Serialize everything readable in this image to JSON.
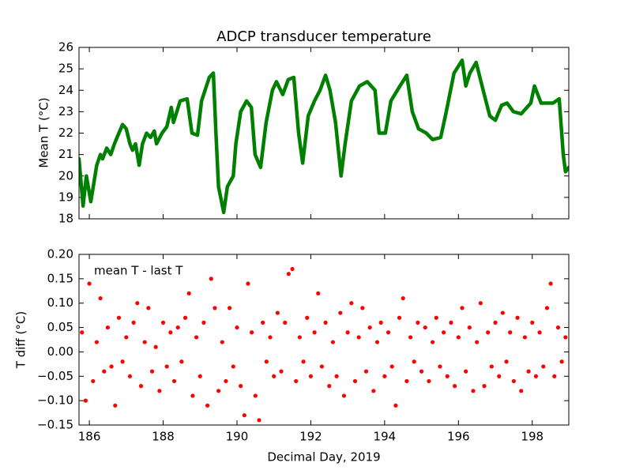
{
  "chart_data": [
    {
      "type": "line",
      "title": "ADCP transducer temperature",
      "ylabel": "Mean T (°C)",
      "x": [
        185.72,
        185.83,
        185.92,
        186.04,
        186.2,
        186.3,
        186.36,
        186.47,
        186.58,
        186.68,
        186.8,
        186.9,
        187.0,
        187.1,
        187.17,
        187.25,
        187.35,
        187.44,
        187.55,
        187.66,
        187.76,
        187.82,
        187.97,
        188.1,
        188.22,
        188.28,
        188.46,
        188.65,
        188.78,
        188.93,
        189.04,
        189.25,
        189.36,
        189.43,
        189.5,
        189.64,
        189.74,
        189.9,
        189.97,
        190.1,
        190.26,
        190.39,
        190.49,
        190.64,
        190.79,
        190.96,
        191.07,
        191.24,
        191.39,
        191.54,
        191.67,
        191.78,
        191.93,
        192.1,
        192.25,
        192.4,
        192.52,
        192.67,
        192.82,
        192.93,
        193.1,
        193.32,
        193.53,
        193.74,
        193.85,
        194.02,
        194.17,
        194.38,
        194.6,
        194.75,
        194.92,
        195.13,
        195.3,
        195.52,
        195.67,
        195.88,
        196.1,
        196.2,
        196.31,
        196.48,
        196.67,
        196.85,
        197.0,
        197.17,
        197.32,
        197.49,
        197.7,
        197.96,
        198.06,
        198.24,
        198.56,
        198.73,
        198.84,
        198.9,
        198.99
      ],
      "series": [
        {
          "name": "Mean T",
          "color": "#008000",
          "values": [
            20.8,
            18.6,
            20.0,
            18.8,
            20.5,
            21.0,
            20.8,
            21.3,
            21.0,
            21.5,
            22.0,
            22.4,
            22.2,
            21.5,
            21.2,
            21.5,
            20.5,
            21.5,
            22.0,
            21.8,
            22.1,
            21.5,
            22.0,
            22.3,
            23.2,
            22.5,
            23.5,
            23.6,
            22.0,
            21.9,
            23.5,
            24.6,
            24.8,
            22.0,
            19.5,
            18.3,
            19.5,
            20.0,
            21.5,
            23.0,
            23.5,
            23.2,
            21.0,
            20.4,
            22.5,
            24.0,
            24.4,
            23.8,
            24.5,
            24.6,
            22.0,
            20.6,
            22.8,
            23.5,
            24.0,
            24.7,
            24.0,
            22.5,
            20.0,
            21.5,
            23.5,
            24.2,
            24.4,
            24.0,
            22.0,
            22.0,
            23.5,
            24.1,
            24.7,
            23.0,
            22.2,
            22.0,
            21.7,
            21.8,
            23.0,
            24.8,
            25.4,
            24.2,
            24.8,
            25.3,
            24.0,
            22.8,
            22.6,
            23.3,
            23.4,
            23.0,
            22.9,
            23.4,
            24.2,
            23.4,
            23.4,
            23.6,
            21.0,
            20.2,
            20.4
          ]
        }
      ],
      "ylim": [
        18,
        26
      ],
      "yticks": [
        18,
        19,
        20,
        21,
        22,
        23,
        24,
        25,
        26
      ]
    },
    {
      "type": "scatter",
      "xlabel": "Decimal Day, 2019",
      "ylabel": "T diff (°C)",
      "annotation": "mean T - last T",
      "x": [
        185.8,
        185.9,
        186.0,
        186.1,
        186.2,
        186.3,
        186.4,
        186.5,
        186.6,
        186.7,
        186.8,
        186.9,
        187.0,
        187.1,
        187.2,
        187.3,
        187.4,
        187.5,
        187.6,
        187.7,
        187.8,
        187.9,
        188.0,
        188.1,
        188.2,
        188.3,
        188.4,
        188.5,
        188.6,
        188.7,
        188.8,
        188.9,
        189.0,
        189.1,
        189.2,
        189.3,
        189.4,
        189.5,
        189.6,
        189.7,
        189.8,
        189.9,
        190.0,
        190.1,
        190.2,
        190.3,
        190.4,
        190.5,
        190.6,
        190.7,
        190.8,
        190.9,
        191.0,
        191.1,
        191.2,
        191.3,
        191.4,
        191.5,
        191.6,
        191.7,
        191.8,
        191.9,
        192.0,
        192.1,
        192.2,
        192.3,
        192.4,
        192.5,
        192.6,
        192.7,
        192.8,
        192.9,
        193.0,
        193.1,
        193.2,
        193.3,
        193.4,
        193.5,
        193.6,
        193.7,
        193.8,
        193.9,
        194.0,
        194.1,
        194.2,
        194.3,
        194.4,
        194.5,
        194.6,
        194.7,
        194.8,
        194.9,
        195.0,
        195.1,
        195.2,
        195.3,
        195.4,
        195.5,
        195.6,
        195.7,
        195.8,
        195.9,
        196.0,
        196.1,
        196.2,
        196.3,
        196.4,
        196.5,
        196.6,
        196.7,
        196.8,
        196.9,
        197.0,
        197.1,
        197.2,
        197.3,
        197.4,
        197.5,
        197.6,
        197.7,
        197.8,
        197.9,
        198.0,
        198.1,
        198.2,
        198.3,
        198.4,
        198.5,
        198.6,
        198.7,
        198.8,
        198.9
      ],
      "series": [
        {
          "name": "T diff",
          "color": "#ff0000",
          "values": [
            0.04,
            -0.1,
            0.14,
            -0.06,
            0.02,
            0.11,
            -0.04,
            0.05,
            -0.03,
            -0.11,
            0.07,
            -0.02,
            0.03,
            -0.05,
            0.06,
            0.1,
            -0.07,
            0.02,
            0.09,
            -0.04,
            0.01,
            -0.08,
            0.06,
            -0.03,
            0.04,
            -0.06,
            0.05,
            -0.02,
            0.07,
            0.12,
            -0.09,
            0.03,
            -0.05,
            0.06,
            -0.11,
            0.15,
            0.09,
            -0.08,
            0.02,
            -0.06,
            0.09,
            -0.03,
            0.05,
            -0.07,
            -0.13,
            0.14,
            0.04,
            -0.09,
            -0.14,
            0.06,
            -0.02,
            0.03,
            -0.05,
            0.08,
            -0.04,
            0.06,
            0.16,
            0.17,
            -0.06,
            0.03,
            -0.02,
            0.07,
            -0.05,
            0.04,
            0.12,
            -0.03,
            0.06,
            -0.07,
            0.02,
            -0.05,
            0.08,
            -0.09,
            0.04,
            0.1,
            -0.06,
            0.03,
            0.09,
            -0.04,
            0.05,
            -0.08,
            0.02,
            0.06,
            -0.05,
            0.04,
            -0.03,
            -0.11,
            0.07,
            0.11,
            -0.06,
            0.03,
            -0.02,
            0.06,
            -0.04,
            0.05,
            -0.06,
            0.02,
            0.07,
            -0.03,
            0.04,
            -0.05,
            0.06,
            -0.07,
            0.03,
            0.09,
            -0.04,
            0.05,
            -0.08,
            0.02,
            0.1,
            -0.07,
            0.04,
            -0.03,
            0.06,
            -0.05,
            0.08,
            -0.02,
            0.04,
            -0.06,
            0.07,
            -0.08,
            0.03,
            -0.04,
            0.06,
            -0.05,
            0.04,
            -0.03,
            0.09,
            0.14,
            -0.05,
            0.05,
            -0.02,
            0.03
          ]
        }
      ],
      "xlim": [
        185.72,
        198.99
      ],
      "xticks": [
        186,
        188,
        190,
        192,
        194,
        196,
        198
      ],
      "ylim": [
        -0.15,
        0.2
      ],
      "yticks": [
        {
          "value": -0.15,
          "label": "−0.15"
        },
        {
          "value": -0.1,
          "label": "−0.10"
        },
        {
          "value": -0.05,
          "label": "−0.05"
        },
        {
          "value": 0,
          "label": "0.00"
        },
        {
          "value": 0.05,
          "label": "0.05"
        },
        {
          "value": 0.1,
          "label": "0.10"
        },
        {
          "value": 0.15,
          "label": "0.15"
        },
        {
          "value": 0.2,
          "label": "0.20"
        }
      ]
    }
  ]
}
